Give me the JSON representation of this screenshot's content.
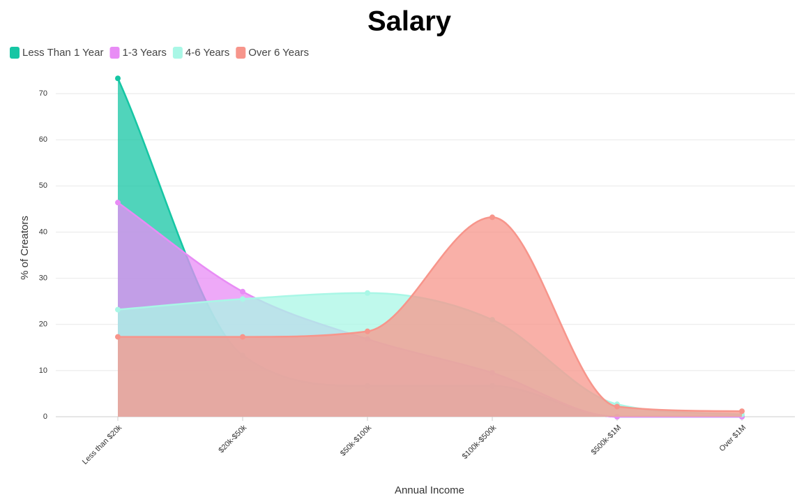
{
  "chart_data": {
    "type": "area",
    "title": "Salary",
    "x_label": "Annual Income",
    "y_label": "% of Creators",
    "categories": [
      "Less than $20k",
      "$20k-$50k",
      "$50k-$100k",
      "$100k-$500k",
      "$500k-$1M",
      "Over $1M"
    ],
    "series": [
      {
        "name": "Less Than 1 Year",
        "color": "#16c6a4",
        "values": [
          73.3,
          13.3,
          6.7,
          6.7,
          0,
          0
        ]
      },
      {
        "name": "1-3 Years",
        "color": "#e88cf5",
        "values": [
          46.4,
          27.1,
          16.8,
          9.5,
          0,
          0
        ]
      },
      {
        "name": "4-6 Years",
        "color": "#a9f7e6",
        "values": [
          23.2,
          25.5,
          26.8,
          21.0,
          2.7,
          0.5
        ]
      },
      {
        "name": "Over 6 Years",
        "color": "#f7958b",
        "values": [
          17.3,
          17.3,
          18.5,
          43.2,
          2.2,
          1.2
        ]
      }
    ],
    "ylim": [
      0,
      75
    ],
    "yticks": [
      0,
      10,
      20,
      30,
      40,
      50,
      60,
      70
    ],
    "grid": true,
    "legend": "top-left"
  }
}
